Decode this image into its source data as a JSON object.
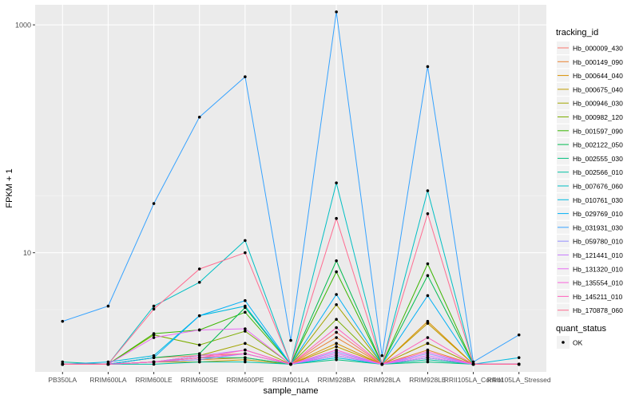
{
  "chart_data": {
    "type": "line",
    "scale_y": "log10",
    "title": "",
    "xlabel": "sample_name",
    "ylabel": "FPKM + 1",
    "categories": [
      "PB350LA",
      "RRIM600LA",
      "RRIM600LE",
      "RRIM600SE",
      "RRIM600PE",
      "RRIM901LA",
      "RRIM928BA",
      "RRIM928LA",
      "RRIM928LE",
      "RRII105LA_Control",
      "RRII105LA_Stressed"
    ],
    "yticks": [
      10,
      1000
    ],
    "ylim": [
      0.9,
      1500
    ],
    "grid": true,
    "legend_position": "right",
    "color_legend": {
      "title": "tracking_id",
      "entries": [
        "Hb_000009_430",
        "Hb_000149_090",
        "Hb_000644_040",
        "Hb_000675_040",
        "Hb_000946_030",
        "Hb_000982_120",
        "Hb_001597_090",
        "Hb_002122_050",
        "Hb_002555_030",
        "Hb_002566_010",
        "Hb_007676_060",
        "Hb_010761_030",
        "Hb_029769_010",
        "Hb_031931_030",
        "Hb_059780_010",
        "Hb_121441_010",
        "Hb_131320_010",
        "Hb_135554_010",
        "Hb_145211_010",
        "Hb_170878_060"
      ]
    },
    "shape_legend": {
      "title": "quant_status",
      "entries": [
        "OK"
      ]
    },
    "colors": [
      "#F8766D",
      "#EA8331",
      "#D89000",
      "#C09B00",
      "#A3A500",
      "#7CAE00",
      "#39B600",
      "#00BB4E",
      "#00BF7D",
      "#00C1A3",
      "#00BFC4",
      "#00BAE0",
      "#00B0F6",
      "#35A2FF",
      "#9590FF",
      "#C77CFF",
      "#E76BF3",
      "#FA62DB",
      "#FF62BC",
      "#FF6C91"
    ],
    "series": [
      {
        "name": "Hb_000009_430",
        "values": [
          1.05,
          1.05,
          1.2,
          1.25,
          1.3,
          1.05,
          2.0,
          1.05,
          1.6,
          1.05,
          1.05
        ]
      },
      {
        "name": "Hb_000149_090",
        "values": [
          1.05,
          1.05,
          1.1,
          1.2,
          1.3,
          1.05,
          1.8,
          1.05,
          1.4,
          1.05,
          1.05
        ]
      },
      {
        "name": "Hb_000644_040",
        "values": [
          1.05,
          1.05,
          1.1,
          1.15,
          1.2,
          1.05,
          1.6,
          1.05,
          2.5,
          1.05,
          1.05
        ]
      },
      {
        "name": "Hb_000675_040",
        "values": [
          1.05,
          1.05,
          1.1,
          1.1,
          1.15,
          1.05,
          1.5,
          1.05,
          2.4,
          1.05,
          1.05
        ]
      },
      {
        "name": "Hb_000946_030",
        "values": [
          1.05,
          1.05,
          1.1,
          1.25,
          1.6,
          1.05,
          3.5,
          1.05,
          1.6,
          1.05,
          1.05
        ]
      },
      {
        "name": "Hb_000982_120",
        "values": [
          1.05,
          1.05,
          1.9,
          1.55,
          2.05,
          1.05,
          2.6,
          1.05,
          1.2,
          1.05,
          1.05
        ]
      },
      {
        "name": "Hb_001597_090",
        "values": [
          1.05,
          1.05,
          1.95,
          2.1,
          3.0,
          1.05,
          6.8,
          1.05,
          8.0,
          1.05,
          1.05
        ]
      },
      {
        "name": "Hb_002122_050",
        "values": [
          1.05,
          1.05,
          1.2,
          1.3,
          3.3,
          1.05,
          8.5,
          1.05,
          6.3,
          1.05,
          1.05
        ]
      },
      {
        "name": "Hb_002555_030",
        "values": [
          1.05,
          1.05,
          1.1,
          1.2,
          1.2,
          1.05,
          1.15,
          1.05,
          1.1,
          1.05,
          1.05
        ]
      },
      {
        "name": "Hb_002566_010",
        "values": [
          1.1,
          1.05,
          1.05,
          1.1,
          1.1,
          1.05,
          1.25,
          1.05,
          1.15,
          1.05,
          1.05
        ]
      },
      {
        "name": "Hb_007676_060",
        "values": [
          1.05,
          1.05,
          3.4,
          5.5,
          12.8,
          1.05,
          41.0,
          1.05,
          35.0,
          1.05,
          1.05
        ]
      },
      {
        "name": "Hb_010761_030",
        "values": [
          1.05,
          1.1,
          1.25,
          2.8,
          3.4,
          1.05,
          1.2,
          1.05,
          1.2,
          1.05,
          1.2
        ]
      },
      {
        "name": "Hb_029769_010",
        "values": [
          1.05,
          1.05,
          1.2,
          2.8,
          3.8,
          1.05,
          4.3,
          1.05,
          4.2,
          1.05,
          1.05
        ]
      },
      {
        "name": "Hb_031931_030",
        "values": [
          2.5,
          3.4,
          27.0,
          155.0,
          350.0,
          1.7,
          1300.0,
          1.25,
          430.0,
          1.1,
          1.9
        ]
      },
      {
        "name": "Hb_059780_010",
        "values": [
          1.05,
          1.05,
          1.1,
          1.15,
          1.3,
          1.05,
          1.35,
          1.05,
          1.3,
          1.05,
          1.05
        ]
      },
      {
        "name": "Hb_121441_010",
        "values": [
          1.05,
          1.05,
          1.1,
          1.25,
          1.4,
          1.05,
          1.25,
          1.05,
          1.2,
          1.05,
          1.05
        ]
      },
      {
        "name": "Hb_131320_010",
        "values": [
          1.05,
          1.05,
          1.8,
          2.1,
          2.15,
          1.05,
          1.3,
          1.05,
          1.25,
          1.05,
          1.05
        ]
      },
      {
        "name": "Hb_135554_010",
        "values": [
          1.05,
          1.05,
          1.1,
          1.2,
          1.3,
          1.05,
          1.4,
          1.05,
          1.35,
          1.05,
          1.05
        ]
      },
      {
        "name": "Hb_145211_010",
        "values": [
          1.05,
          1.05,
          1.1,
          1.2,
          1.4,
          1.05,
          2.2,
          1.05,
          1.8,
          1.05,
          1.05
        ]
      },
      {
        "name": "Hb_170878_060",
        "values": [
          1.05,
          1.05,
          3.2,
          7.2,
          10.0,
          1.05,
          20.0,
          1.05,
          22.0,
          1.05,
          1.05
        ]
      }
    ]
  }
}
